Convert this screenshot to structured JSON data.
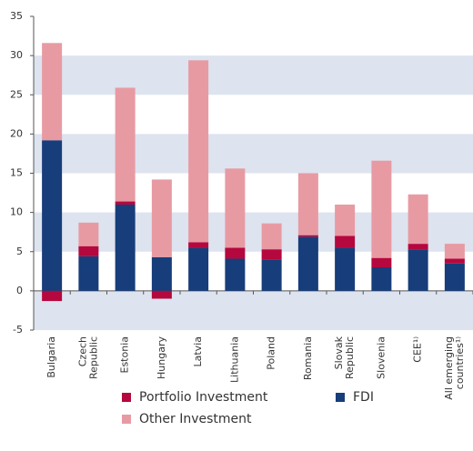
{
  "chart_data": {
    "type": "bar",
    "stacked": true,
    "categories": [
      "Bulgaria",
      [
        "Czech",
        "Republic"
      ],
      "Estonia",
      "Hungary",
      "Latvia",
      "Lithuania",
      "Poland",
      "Romania",
      [
        "Slovak",
        "Republic"
      ],
      "Slovenia",
      "CEE¹⁾",
      [
        "All emerging",
        "countries¹⁾"
      ]
    ],
    "series": [
      {
        "name": "FDI",
        "color": "#173d7a",
        "values": [
          19.2,
          4.4,
          11.0,
          4.3,
          5.5,
          4.1,
          4.0,
          6.9,
          5.5,
          3.0,
          5.3,
          3.5
        ]
      },
      {
        "name": "Portfolio Investment",
        "color": "#b5083f",
        "values": [
          -1.3,
          1.3,
          0.4,
          -1.0,
          0.7,
          1.4,
          1.3,
          0.2,
          1.5,
          1.2,
          0.7,
          0.6
        ]
      },
      {
        "name": "Other Investment",
        "color": "#e89aa3",
        "values": [
          12.4,
          3.0,
          14.5,
          9.9,
          23.2,
          10.1,
          3.3,
          7.9,
          4.0,
          12.4,
          6.3,
          1.9
        ]
      }
    ],
    "ylim": [
      -5,
      35
    ],
    "yticks": [
      -5,
      0,
      5,
      10,
      15,
      20,
      25,
      30,
      35
    ],
    "grid": true
  }
}
